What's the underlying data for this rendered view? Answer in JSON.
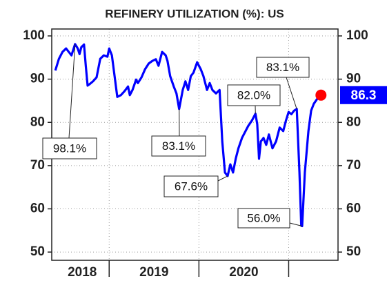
{
  "chart_data": {
    "type": "line",
    "title": "REFINERY UTILIZATION (%): US",
    "x": [
      2018.4,
      2018.44,
      2018.48,
      2018.52,
      2018.55,
      2018.58,
      2018.62,
      2018.65,
      2018.67,
      2018.69,
      2018.72,
      2018.74,
      2018.76,
      2018.78,
      2018.82,
      2018.86,
      2018.9,
      2018.94,
      2018.98,
      2019.0,
      2019.03,
      2019.05,
      2019.09,
      2019.13,
      2019.17,
      2019.21,
      2019.23,
      2019.26,
      2019.3,
      2019.32,
      2019.36,
      2019.4,
      2019.44,
      2019.48,
      2019.52,
      2019.55,
      2019.59,
      2019.63,
      2019.65,
      2019.68,
      2019.72,
      2019.75,
      2019.78,
      2019.82,
      2019.85,
      2019.88,
      2019.91,
      2019.94,
      2019.98,
      2020.02,
      2020.05,
      2020.09,
      2020.12,
      2020.15,
      2020.19,
      2020.23,
      2020.26,
      2020.29,
      2020.32,
      2020.35,
      2020.38,
      2020.41,
      2020.44,
      2020.48,
      2020.52,
      2020.55,
      2020.59,
      2020.63,
      2020.65,
      2020.67,
      2020.69,
      2020.72,
      2020.75,
      2020.78,
      2020.82,
      2020.86,
      2020.9,
      2020.94,
      2020.97,
      2021.0,
      2021.03,
      2021.06,
      2021.09,
      2021.12,
      2021.14,
      2021.15,
      2021.18,
      2021.22,
      2021.25,
      2021.28,
      2021.32,
      2021.36
    ],
    "series": [
      {
        "name": "Refinery utilization",
        "color": "#0000ff",
        "values": [
          92,
          94.7,
          96.3,
          97.1,
          96.3,
          95.5,
          98.1,
          97.1,
          95.8,
          97.4,
          98,
          93,
          88.5,
          88.8,
          89.5,
          90.4,
          94.7,
          95.5,
          95.2,
          97.1,
          95.5,
          92.3,
          85.9,
          86.3,
          87.2,
          88.3,
          86.3,
          87.5,
          89.9,
          89.1,
          90.4,
          92.3,
          93.6,
          94.2,
          94.6,
          93.1,
          96.3,
          95.5,
          94.2,
          90.7,
          88.3,
          86.7,
          83.1,
          87.5,
          89.5,
          87.5,
          90.7,
          91.5,
          93.9,
          92.3,
          90.7,
          87.5,
          89.1,
          87.5,
          86.7,
          87.5,
          75.6,
          68.4,
          67.6,
          70.3,
          68.4,
          71.6,
          74,
          76.4,
          78,
          79.2,
          80.4,
          82.0,
          79.6,
          71.6,
          75.6,
          76.4,
          74.8,
          77.2,
          74,
          75.6,
          78.8,
          78,
          80.4,
          82.4,
          81.9,
          82.7,
          83.1,
          68.4,
          56.1,
          56.0,
          68.4,
          78,
          82.7,
          84.3,
          85.5,
          86.3
        ]
      }
    ],
    "xlim": [
      2018.36,
      2021.55
    ],
    "xticks": [
      2019,
      2020,
      2021
    ],
    "xtick_labels": [
      {
        "value": 2018.7,
        "label": "2018"
      },
      {
        "value": 2019.5,
        "label": "2019"
      },
      {
        "value": 2020.5,
        "label": "2020"
      }
    ],
    "ylim": [
      48.1,
      101.6
    ],
    "yticks": [
      50,
      60,
      70,
      80,
      90,
      100
    ],
    "grid": true,
    "end_label": 86.3,
    "end_label_color": "#0000ff",
    "end_marker_color": "#ff0000",
    "annotations": [
      {
        "text": "98.1%",
        "x": 2018.62,
        "y": 98.1
      },
      {
        "text": "83.1%",
        "x": 2019.78,
        "y": 83.1
      },
      {
        "text": "67.6%",
        "x": 2020.32,
        "y": 67.6
      },
      {
        "text": "82.0%",
        "x": 2020.63,
        "y": 82.0
      },
      {
        "text": "83.1%",
        "x": 2021.09,
        "y": 83.1
      },
      {
        "text": "56.0%",
        "x": 2021.15,
        "y": 56.0
      }
    ]
  }
}
